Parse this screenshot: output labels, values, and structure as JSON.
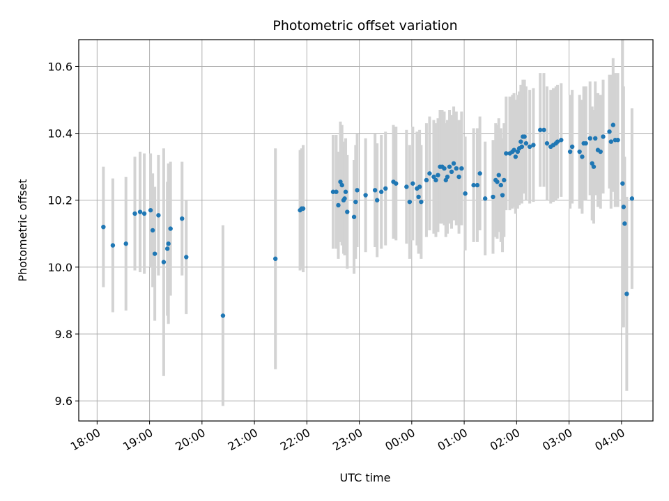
{
  "chart_data": {
    "type": "scatter",
    "title": "Photometric offset variation",
    "xlabel": "UTC time",
    "ylabel": "Photometric offset",
    "grid": true,
    "xlim": [
      -0.35,
      10.6
    ],
    "ylim": [
      9.54,
      10.68
    ],
    "x_ticks": [
      {
        "value": 0,
        "label": "18:00"
      },
      {
        "value": 1,
        "label": "19:00"
      },
      {
        "value": 2,
        "label": "20:00"
      },
      {
        "value": 3,
        "label": "21:00"
      },
      {
        "value": 4,
        "label": "22:00"
      },
      {
        "value": 5,
        "label": "23:00"
      },
      {
        "value": 6,
        "label": "00:00"
      },
      {
        "value": 7,
        "label": "01:00"
      },
      {
        "value": 8,
        "label": "02:00"
      },
      {
        "value": 9,
        "label": "03:00"
      },
      {
        "value": 10,
        "label": "04:00"
      }
    ],
    "y_ticks": [
      9.6,
      9.8,
      10.0,
      10.2,
      10.4,
      10.6
    ],
    "y_tick_labels": [
      "9.6",
      "9.8",
      "10.0",
      "10.2",
      "10.4",
      "10.6"
    ],
    "colors": {
      "point": "#1f77b4",
      "errorbar": "#d3d3d3",
      "grid": "#b0b0b0"
    },
    "points": [
      [
        0.12,
        10.12,
        0.18
      ],
      [
        0.3,
        10.065,
        0.2
      ],
      [
        0.55,
        10.07,
        0.2
      ],
      [
        0.72,
        10.16,
        0.17
      ],
      [
        0.82,
        10.165,
        0.18
      ],
      [
        0.9,
        10.16,
        0.18
      ],
      [
        1.02,
        10.17,
        0.17
      ],
      [
        1.06,
        10.11,
        0.17
      ],
      [
        1.1,
        10.04,
        0.2
      ],
      [
        1.17,
        10.155,
        0.18
      ],
      [
        1.27,
        10.015,
        0.34
      ],
      [
        1.34,
        10.055,
        0.2
      ],
      [
        1.36,
        10.07,
        0.24
      ],
      [
        1.4,
        10.115,
        0.2
      ],
      [
        1.62,
        10.145,
        0.17
      ],
      [
        1.7,
        10.03,
        0.17
      ],
      [
        2.4,
        9.855,
        0.27
      ],
      [
        3.4,
        10.025,
        0.33
      ],
      [
        3.87,
        10.17,
        0.18
      ],
      [
        3.9,
        10.175,
        0.18
      ],
      [
        3.93,
        10.175,
        0.19
      ],
      [
        4.5,
        10.225,
        0.17
      ],
      [
        4.56,
        10.225,
        0.17
      ],
      [
        4.6,
        10.185,
        0.16
      ],
      [
        4.64,
        10.255,
        0.18
      ],
      [
        4.67,
        10.245,
        0.18
      ],
      [
        4.7,
        10.2,
        0.16
      ],
      [
        4.72,
        10.205,
        0.17
      ],
      [
        4.74,
        10.225,
        0.16
      ],
      [
        4.77,
        10.165,
        0.17
      ],
      [
        4.9,
        10.15,
        0.17
      ],
      [
        4.93,
        10.195,
        0.17
      ],
      [
        4.96,
        10.23,
        0.17
      ],
      [
        5.12,
        10.215,
        0.17
      ],
      [
        5.3,
        10.23,
        0.17
      ],
      [
        5.34,
        10.2,
        0.17
      ],
      [
        5.42,
        10.225,
        0.17
      ],
      [
        5.5,
        10.235,
        0.17
      ],
      [
        5.65,
        10.255,
        0.17
      ],
      [
        5.7,
        10.25,
        0.17
      ],
      [
        5.9,
        10.24,
        0.17
      ],
      [
        5.96,
        10.195,
        0.17
      ],
      [
        6.02,
        10.25,
        0.17
      ],
      [
        6.1,
        10.235,
        0.17
      ],
      [
        6.13,
        10.21,
        0.17
      ],
      [
        6.15,
        10.24,
        0.17
      ],
      [
        6.18,
        10.195,
        0.17
      ],
      [
        6.28,
        10.26,
        0.17
      ],
      [
        6.34,
        10.28,
        0.17
      ],
      [
        6.42,
        10.27,
        0.17
      ],
      [
        6.46,
        10.26,
        0.17
      ],
      [
        6.5,
        10.275,
        0.17
      ],
      [
        6.54,
        10.3,
        0.17
      ],
      [
        6.58,
        10.3,
        0.17
      ],
      [
        6.62,
        10.295,
        0.17
      ],
      [
        6.65,
        10.26,
        0.17
      ],
      [
        6.68,
        10.27,
        0.17
      ],
      [
        6.72,
        10.3,
        0.17
      ],
      [
        6.76,
        10.285,
        0.17
      ],
      [
        6.8,
        10.31,
        0.17
      ],
      [
        6.85,
        10.295,
        0.17
      ],
      [
        6.9,
        10.27,
        0.17
      ],
      [
        6.95,
        10.295,
        0.17
      ],
      [
        7.02,
        10.22,
        0.17
      ],
      [
        7.18,
        10.245,
        0.17
      ],
      [
        7.25,
        10.245,
        0.17
      ],
      [
        7.3,
        10.28,
        0.17
      ],
      [
        7.4,
        10.205,
        0.17
      ],
      [
        7.55,
        10.21,
        0.17
      ],
      [
        7.6,
        10.26,
        0.17
      ],
      [
        7.63,
        10.255,
        0.17
      ],
      [
        7.66,
        10.275,
        0.17
      ],
      [
        7.7,
        10.245,
        0.17
      ],
      [
        7.73,
        10.215,
        0.17
      ],
      [
        7.76,
        10.26,
        0.17
      ],
      [
        7.8,
        10.34,
        0.17
      ],
      [
        7.87,
        10.34,
        0.17
      ],
      [
        7.92,
        10.345,
        0.17
      ],
      [
        7.95,
        10.35,
        0.17
      ],
      [
        7.98,
        10.33,
        0.17
      ],
      [
        8.02,
        10.345,
        0.17
      ],
      [
        8.05,
        10.355,
        0.17
      ],
      [
        8.08,
        10.375,
        0.17
      ],
      [
        8.1,
        10.36,
        0.17
      ],
      [
        8.12,
        10.39,
        0.17
      ],
      [
        8.15,
        10.39,
        0.17
      ],
      [
        8.18,
        10.37,
        0.17
      ],
      [
        8.25,
        10.36,
        0.17
      ],
      [
        8.32,
        10.365,
        0.17
      ],
      [
        8.45,
        10.41,
        0.17
      ],
      [
        8.52,
        10.41,
        0.17
      ],
      [
        8.58,
        10.37,
        0.17
      ],
      [
        8.65,
        10.36,
        0.17
      ],
      [
        8.7,
        10.365,
        0.17
      ],
      [
        8.75,
        10.37,
        0.17
      ],
      [
        8.78,
        10.375,
        0.17
      ],
      [
        8.85,
        10.38,
        0.17
      ],
      [
        9.02,
        10.345,
        0.17
      ],
      [
        9.06,
        10.36,
        0.17
      ],
      [
        9.2,
        10.345,
        0.17
      ],
      [
        9.25,
        10.33,
        0.17
      ],
      [
        9.28,
        10.37,
        0.17
      ],
      [
        9.32,
        10.37,
        0.17
      ],
      [
        9.4,
        10.385,
        0.17
      ],
      [
        9.44,
        10.31,
        0.17
      ],
      [
        9.47,
        10.3,
        0.17
      ],
      [
        9.5,
        10.385,
        0.17
      ],
      [
        9.55,
        10.35,
        0.17
      ],
      [
        9.6,
        10.345,
        0.17
      ],
      [
        9.65,
        10.39,
        0.17
      ],
      [
        9.77,
        10.405,
        0.17
      ],
      [
        9.8,
        10.375,
        0.2
      ],
      [
        9.84,
        10.425,
        0.2
      ],
      [
        9.88,
        10.38,
        0.2
      ],
      [
        9.93,
        10.38,
        0.2
      ],
      [
        10.02,
        10.25,
        0.43
      ],
      [
        10.04,
        10.18,
        0.36
      ],
      [
        10.06,
        10.13,
        0.2
      ],
      [
        10.1,
        9.92,
        0.29
      ],
      [
        10.2,
        10.205,
        0.27
      ]
    ]
  }
}
